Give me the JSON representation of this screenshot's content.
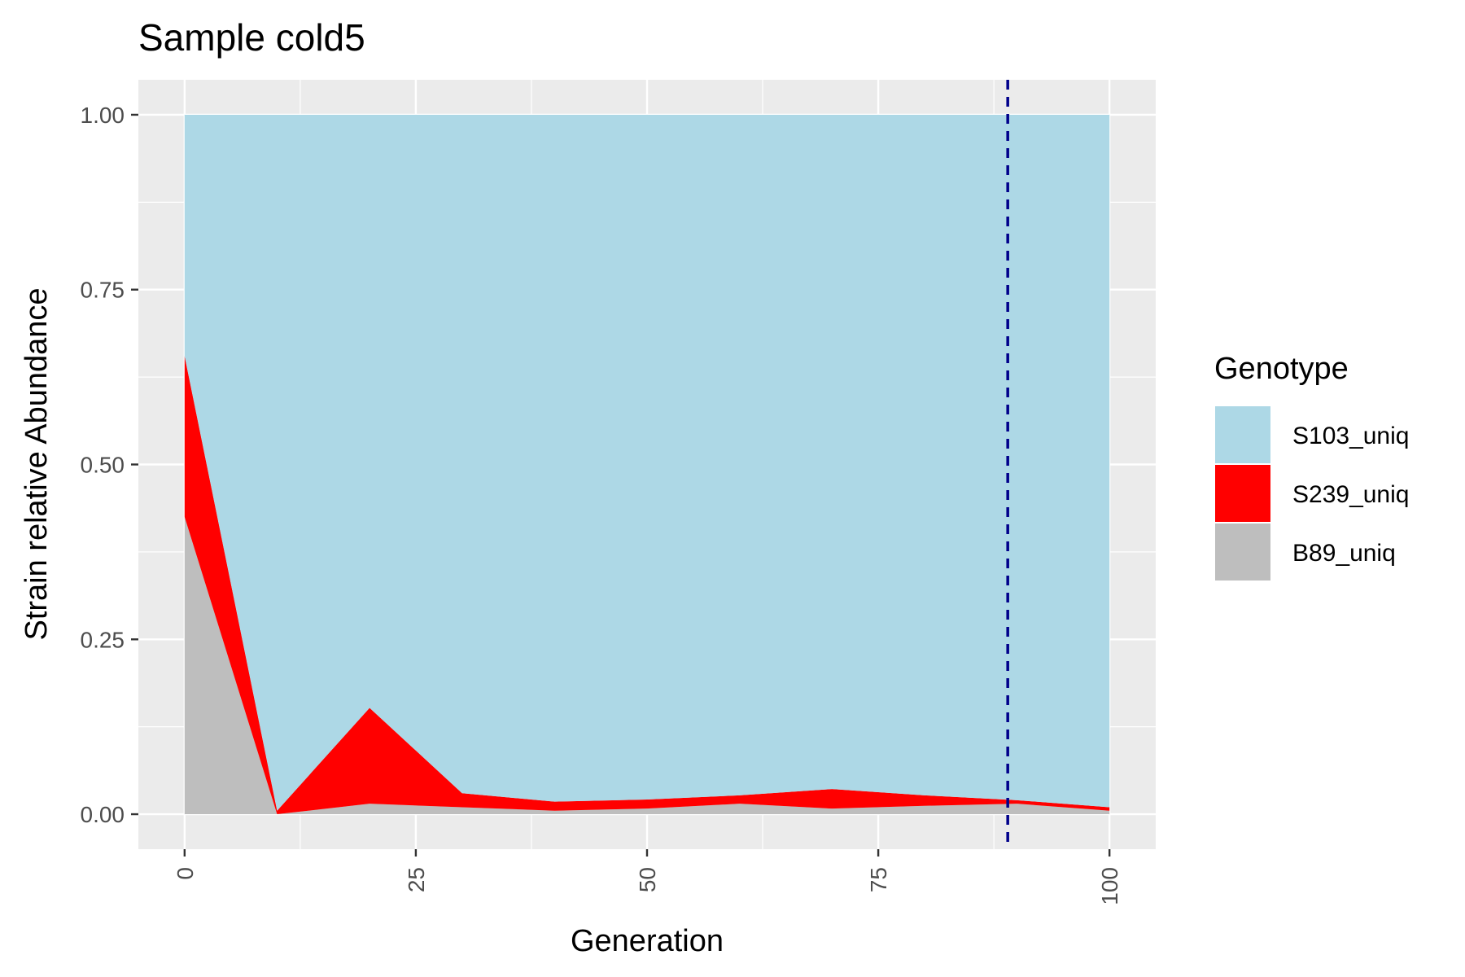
{
  "chart_data": {
    "type": "area",
    "title": "Sample cold5",
    "xlabel": "Generation",
    "ylabel": "Strain relative Abundance",
    "xlim": [
      -5,
      105
    ],
    "ylim": [
      -0.05,
      1.05
    ],
    "x_ticks": [
      0,
      25,
      50,
      75,
      100
    ],
    "x_tick_labels": [
      "0",
      "25",
      "50",
      "75",
      "100"
    ],
    "y_ticks": [
      0,
      0.25,
      0.5,
      0.75,
      1.0
    ],
    "y_tick_labels": [
      "0.00",
      "0.25",
      "0.50",
      "0.75",
      "1.00"
    ],
    "stacked": true,
    "grid": true,
    "x": [
      0,
      10,
      20,
      30,
      40,
      50,
      60,
      70,
      80,
      90,
      100
    ],
    "series": [
      {
        "name": "B89_uniq",
        "color": "#bebebe",
        "values": [
          0.425,
          0.0,
          0.015,
          0.01,
          0.005,
          0.008,
          0.015,
          0.008,
          0.012,
          0.015,
          0.005
        ]
      },
      {
        "name": "S239_uniq",
        "color": "#ff0000",
        "values": [
          0.23,
          0.005,
          0.137,
          0.02,
          0.013,
          0.013,
          0.012,
          0.028,
          0.015,
          0.005,
          0.005
        ]
      },
      {
        "name": "S103_uniq",
        "color": "#add8e6",
        "values": [
          0.345,
          0.995,
          0.848,
          0.97,
          0.982,
          0.979,
          0.973,
          0.964,
          0.973,
          0.98,
          0.99
        ]
      }
    ],
    "vline": {
      "x": 89,
      "color": "#00008b",
      "style": "dashed"
    },
    "legend": {
      "title": "Genotype",
      "position": "right",
      "order": [
        "S103_uniq",
        "S239_uniq",
        "B89_uniq"
      ]
    }
  }
}
